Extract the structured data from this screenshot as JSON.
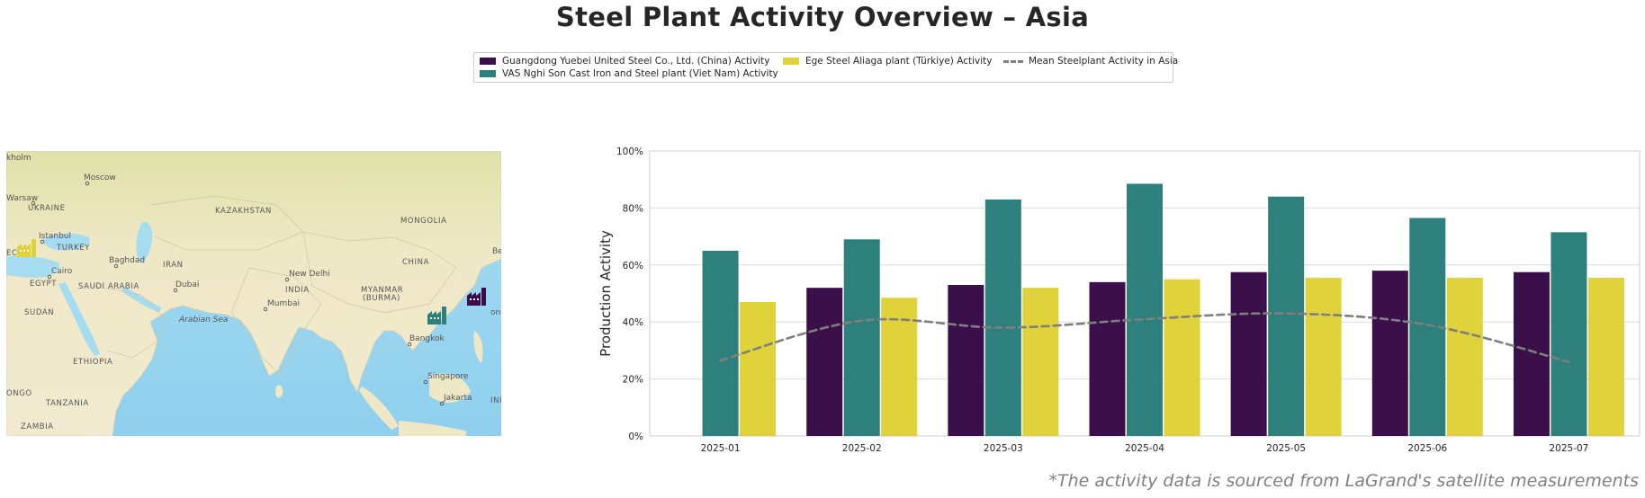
{
  "title": "Steel Plant Activity Overview – Asia",
  "legend": {
    "items": [
      {
        "label": "Guangdong Yuebei United Steel Co., Ltd. (China) Activity",
        "color": "#3b0f4a",
        "kind": "bar"
      },
      {
        "label": "VAS Nghi Son Cast Iron and Steel plant (Viet Nam) Activity",
        "color": "#2d807c",
        "kind": "bar"
      },
      {
        "label": "Ege Steel Aliaga plant (Türkiye) Activity",
        "color": "#e0d23a",
        "kind": "bar"
      },
      {
        "label": "Mean Steelplant Activity in Asia",
        "color": "#7f7f7f",
        "kind": "line"
      }
    ]
  },
  "map": {
    "labels": [
      {
        "text": "kholm",
        "role": "city"
      },
      {
        "text": "Moscow",
        "role": "city"
      },
      {
        "text": "Warsaw",
        "role": "city"
      },
      {
        "text": "UKRAINE",
        "role": "country"
      },
      {
        "text": "KAZAKHSTAN",
        "role": "country"
      },
      {
        "text": "MONGOLIA",
        "role": "country"
      },
      {
        "text": "Istanbul",
        "role": "city"
      },
      {
        "text": "TURKEY",
        "role": "country"
      },
      {
        "text": "Baghdad",
        "role": "city"
      },
      {
        "text": "IRAN",
        "role": "country"
      },
      {
        "text": "CHINA",
        "role": "country"
      },
      {
        "text": "Cairo",
        "role": "city"
      },
      {
        "text": "EGYPT",
        "role": "country"
      },
      {
        "text": "SAUDI ARABIA",
        "role": "country"
      },
      {
        "text": "Dubai",
        "role": "city"
      },
      {
        "text": "New Delhi",
        "role": "city"
      },
      {
        "text": "INDIA",
        "role": "country"
      },
      {
        "text": "MYANMAR",
        "role": "country"
      },
      {
        "text": "(BURMA)",
        "role": "country"
      },
      {
        "text": "Mumbai",
        "role": "city"
      },
      {
        "text": "SUDAN",
        "role": "country"
      },
      {
        "text": "Arabian Sea",
        "role": "water"
      },
      {
        "text": "Bangkok",
        "role": "city"
      },
      {
        "text": "ETHIOPIA",
        "role": "country"
      },
      {
        "text": "Singapore",
        "role": "city"
      },
      {
        "text": "Jakarta",
        "role": "city"
      },
      {
        "text": "ONGO",
        "role": "country"
      },
      {
        "text": "TANZANIA",
        "role": "country"
      },
      {
        "text": "ZAMBIA",
        "role": "country"
      },
      {
        "text": "INI",
        "role": "country"
      },
      {
        "text": "Be",
        "role": "city"
      },
      {
        "text": "ong",
        "role": "city"
      },
      {
        "text": "EC",
        "role": "country"
      }
    ],
    "plant_icons": [
      {
        "plant": "Ege Steel Aliaga plant (Türkiye)",
        "color": "#e0d23a",
        "icon": "factory-icon"
      },
      {
        "plant": "VAS Nghi Son Cast Iron and Steel plant (Viet Nam)",
        "color": "#2d807c",
        "icon": "factory-icon"
      },
      {
        "plant": "Guangdong Yuebei United Steel Co., Ltd. (China)",
        "color": "#3b0f4a",
        "icon": "factory-icon"
      }
    ]
  },
  "chart_data": {
    "type": "bar",
    "categories": [
      "2025-01",
      "2025-02",
      "2025-03",
      "2025-04",
      "2025-05",
      "2025-06",
      "2025-07"
    ],
    "series": [
      {
        "name": "Guangdong Yuebei United Steel Co., Ltd. (China) Activity",
        "color": "#3b0f4a",
        "values": [
          null,
          52,
          53,
          54,
          57.5,
          58,
          57.5
        ]
      },
      {
        "name": "VAS Nghi Son Cast Iron and Steel plant (Viet Nam) Activity",
        "color": "#2d807c",
        "values": [
          65,
          69,
          83,
          88.5,
          84,
          76.5,
          71.5
        ]
      },
      {
        "name": "Ege Steel Aliaga plant (Türkiye) Activity",
        "color": "#e0d23a",
        "values": [
          47,
          48.5,
          52,
          55,
          55.5,
          55.5,
          55.5
        ]
      }
    ],
    "line_series": {
      "name": "Mean Steelplant Activity in Asia",
      "color": "#7f7f7f",
      "style": "dashed",
      "values": [
        26.5,
        40.5,
        38,
        41,
        43,
        39,
        26
      ]
    },
    "ylabel": "Production Activity",
    "ylim": [
      0,
      100
    ],
    "yticks": [
      "0%",
      "20%",
      "40%",
      "60%",
      "80%",
      "100%"
    ],
    "grid": "horizontal"
  },
  "footer": "*The activity data is sourced from LaGrand's satellite measurements"
}
